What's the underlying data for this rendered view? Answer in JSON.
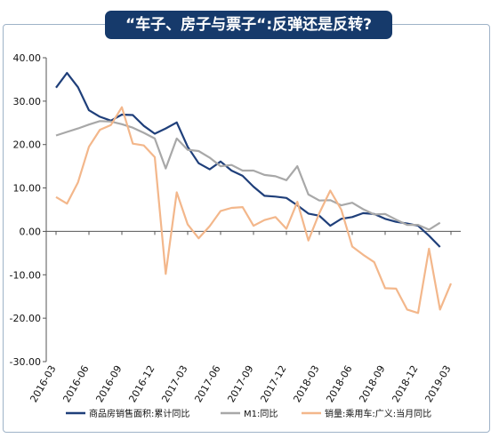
{
  "chart_data": {
    "type": "line",
    "title": "“车子、房子与票子“:反弹还是反转?",
    "xlabel": "",
    "ylabel": "",
    "ylim": [
      -30,
      40
    ],
    "yticks": [
      "40.00",
      "30.00",
      "20.00",
      "10.00",
      "0.00",
      "-10.00",
      "-20.00",
      "-30.00"
    ],
    "ytick_values": [
      40,
      30,
      20,
      10,
      0,
      -10,
      -20,
      -30
    ],
    "x": [
      "2016-03",
      "2016-04",
      "2016-05",
      "2016-06",
      "2016-07",
      "2016-08",
      "2016-09",
      "2016-10",
      "2016-11",
      "2016-12",
      "2017-01",
      "2017-02",
      "2017-03",
      "2017-04",
      "2017-05",
      "2017-06",
      "2017-07",
      "2017-08",
      "2017-09",
      "2017-10",
      "2017-11",
      "2017-12",
      "2018-01",
      "2018-02",
      "2018-03",
      "2018-04",
      "2018-05",
      "2018-06",
      "2018-07",
      "2018-08",
      "2018-09",
      "2018-10",
      "2018-11",
      "2018-12",
      "2019-01",
      "2019-02",
      "2019-03"
    ],
    "xtick_labels": [
      "2016-03",
      "2016-06",
      "2016-09",
      "2016-12",
      "2017-03",
      "2017-06",
      "2017-09",
      "2017-12",
      "2018-03",
      "2018-06",
      "2018-09",
      "2018-12",
      "2019-03"
    ],
    "xtick_index": [
      0,
      3,
      6,
      9,
      12,
      15,
      18,
      21,
      24,
      27,
      30,
      33,
      36
    ],
    "legend_position": "bottom",
    "grid": false,
    "series": [
      {
        "name": "商品房销售面积:累计同比",
        "color": "#1f3f7a",
        "start_index": 0,
        "values": [
          33.1,
          36.5,
          33.2,
          27.9,
          26.4,
          25.5,
          26.9,
          26.8,
          24.3,
          22.5,
          23.7,
          25.1,
          19.5,
          15.7,
          14.3,
          16.1,
          14.0,
          12.8,
          10.3,
          8.2,
          8.0,
          7.7,
          6.0,
          4.1,
          3.6,
          1.3,
          2.9,
          3.3,
          4.2,
          4.0,
          2.9,
          2.2,
          1.8,
          1.3,
          -1.0,
          -3.6,
          null
        ]
      },
      {
        "name": "M1:同比",
        "color": "#a8a8a8",
        "start_index": 0,
        "values": [
          22.1,
          22.9,
          23.7,
          24.6,
          25.4,
          25.3,
          24.7,
          23.9,
          22.7,
          21.4,
          14.5,
          21.4,
          18.8,
          18.5,
          17.0,
          15.0,
          15.3,
          14.0,
          14.0,
          13.0,
          12.7,
          11.8,
          15.0,
          8.5,
          7.1,
          7.2,
          6.0,
          6.6,
          5.1,
          3.9,
          4.0,
          2.7,
          1.5,
          1.5,
          0.4,
          2.0,
          null
        ]
      },
      {
        "name": "销量:乘用车:广义:当月同比",
        "color": "#f3b78b",
        "start_index": 0,
        "values": [
          7.9,
          6.4,
          11.3,
          19.5,
          23.4,
          24.5,
          28.6,
          20.2,
          19.8,
          17.1,
          -9.8,
          9.0,
          1.6,
          -1.6,
          1.2,
          4.7,
          5.4,
          5.6,
          1.3,
          2.6,
          3.3,
          0.6,
          6.8,
          -2.1,
          4.2,
          9.4,
          5.0,
          -3.5,
          -5.4,
          -7.1,
          -13.1,
          -13.2,
          -18.0,
          -18.8,
          -4.0,
          -18.0,
          -12.0
        ]
      }
    ]
  }
}
